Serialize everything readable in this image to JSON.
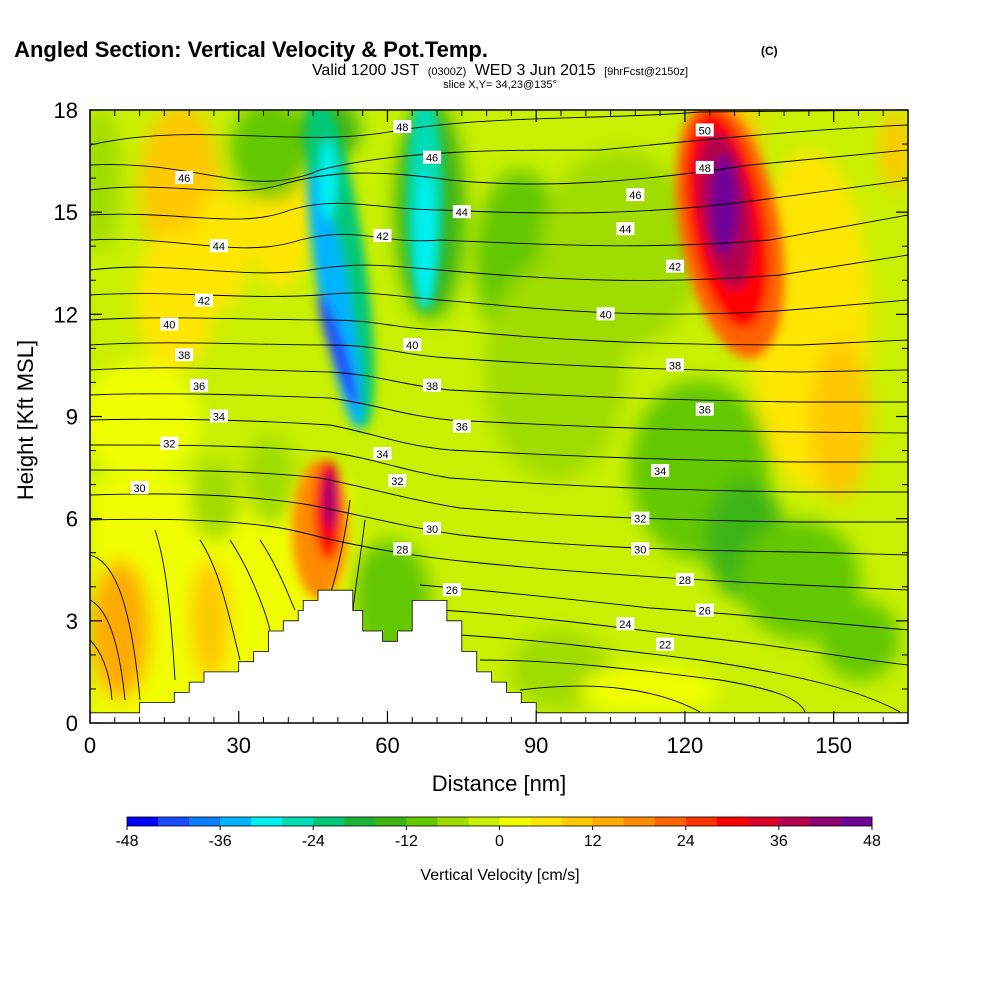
{
  "chart_data": {
    "type": "heatmap",
    "title": "Angled Section: Vertical Velocity & Pot.Temp.",
    "title_unit": "(C)",
    "subtitle_parts": {
      "valid": "Valid 1200 JST",
      "utc": "(0300Z)",
      "date": "WED 3 Jun 2015",
      "fcst": "[9hrFcst@2150z]"
    },
    "slice_label": "slice X,Y= 34,23@135°",
    "xlabel": "Distance [nm]",
    "ylabel": "Height [Kft MSL]",
    "xlim": [
      0,
      165
    ],
    "ylim": [
      0,
      18
    ],
    "xticks": [
      0,
      30,
      60,
      90,
      120,
      150
    ],
    "yticks": [
      0,
      3,
      6,
      9,
      12,
      15,
      18
    ],
    "grid": false,
    "colorbar": {
      "label": "Vertical Velocity [cm/s]",
      "ticks": [
        -48,
        -36,
        -24,
        -12,
        0,
        12,
        24,
        36,
        48
      ],
      "min": -48,
      "max": 48,
      "colors": [
        "#0000ff",
        "#1a4cff",
        "#0a7fff",
        "#00b4ff",
        "#00f0f0",
        "#00dcb4",
        "#00c878",
        "#1eb43c",
        "#3cb414",
        "#64c800",
        "#a0dc00",
        "#c8f000",
        "#f0ff00",
        "#ffe600",
        "#ffc800",
        "#ffaa00",
        "#ff8c00",
        "#ff6400",
        "#ff3200",
        "#ff0000",
        "#dc0028",
        "#b4004c",
        "#8c0073",
        "#6e0096"
      ]
    },
    "theta_contour_labels": [
      {
        "label": "50",
        "x": 124,
        "y": 17.4
      },
      {
        "label": "48",
        "x": 124,
        "y": 16.3
      },
      {
        "label": "46",
        "x": 110,
        "y": 15.5
      },
      {
        "label": "44",
        "x": 108,
        "y": 14.5
      },
      {
        "label": "42",
        "x": 118,
        "y": 13.4
      },
      {
        "label": "40",
        "x": 104,
        "y": 12.0
      },
      {
        "label": "38",
        "x": 118,
        "y": 10.5
      },
      {
        "label": "36",
        "x": 124,
        "y": 9.2
      },
      {
        "label": "34",
        "x": 115,
        "y": 7.4
      },
      {
        "label": "32",
        "x": 111,
        "y": 6.0
      },
      {
        "label": "30",
        "x": 111,
        "y": 5.1
      },
      {
        "label": "28",
        "x": 120,
        "y": 4.2
      },
      {
        "label": "26",
        "x": 124,
        "y": 3.3
      },
      {
        "label": "24",
        "x": 108,
        "y": 2.9
      },
      {
        "label": "22",
        "x": 116,
        "y": 2.3
      },
      {
        "label": "48",
        "x": 63,
        "y": 17.5
      },
      {
        "label": "46",
        "x": 69,
        "y": 16.6
      },
      {
        "label": "44",
        "x": 75,
        "y": 15.0
      },
      {
        "label": "42",
        "x": 59,
        "y": 14.3
      },
      {
        "label": "40",
        "x": 65,
        "y": 11.1
      },
      {
        "label": "38",
        "x": 69,
        "y": 9.9
      },
      {
        "label": "36",
        "x": 75,
        "y": 8.7
      },
      {
        "label": "34",
        "x": 59,
        "y": 7.9
      },
      {
        "label": "32",
        "x": 62,
        "y": 7.1
      },
      {
        "label": "30",
        "x": 69,
        "y": 5.7
      },
      {
        "label": "28",
        "x": 63,
        "y": 5.1
      },
      {
        "label": "26",
        "x": 73,
        "y": 3.9
      },
      {
        "label": "46",
        "x": 19,
        "y": 16.0
      },
      {
        "label": "44",
        "x": 26,
        "y": 14.0
      },
      {
        "label": "42",
        "x": 23,
        "y": 12.4
      },
      {
        "label": "40",
        "x": 16,
        "y": 11.7
      },
      {
        "label": "38",
        "x": 19,
        "y": 10.8
      },
      {
        "label": "36",
        "x": 22,
        "y": 9.9
      },
      {
        "label": "34",
        "x": 26,
        "y": 9.0
      },
      {
        "label": "32",
        "x": 16,
        "y": 8.2
      },
      {
        "label": "30",
        "x": 10,
        "y": 6.9
      }
    ],
    "terrain_profile": [
      [
        0,
        0.3
      ],
      [
        10,
        0.3
      ],
      [
        10,
        0.6
      ],
      [
        17,
        0.6
      ],
      [
        17,
        0.9
      ],
      [
        20,
        0.9
      ],
      [
        20,
        1.2
      ],
      [
        23,
        1.2
      ],
      [
        23,
        1.5
      ],
      [
        30,
        1.5
      ],
      [
        30,
        1.8
      ],
      [
        33,
        1.8
      ],
      [
        33,
        2.1
      ],
      [
        36,
        2.1
      ],
      [
        36,
        2.7
      ],
      [
        39,
        2.7
      ],
      [
        39,
        3.0
      ],
      [
        42,
        3.0
      ],
      [
        42,
        3.3
      ],
      [
        43,
        3.3
      ],
      [
        43,
        3.6
      ],
      [
        46,
        3.6
      ],
      [
        46,
        3.9
      ],
      [
        53,
        3.9
      ],
      [
        53,
        3.3
      ],
      [
        55,
        3.3
      ],
      [
        55,
        2.7
      ],
      [
        59,
        2.7
      ],
      [
        59,
        2.4
      ],
      [
        62,
        2.4
      ],
      [
        62,
        2.7
      ],
      [
        65,
        2.7
      ],
      [
        65,
        3.6
      ],
      [
        72,
        3.6
      ],
      [
        72,
        3.0
      ],
      [
        75,
        3.0
      ],
      [
        75,
        2.1
      ],
      [
        78,
        2.1
      ],
      [
        78,
        1.5
      ],
      [
        81,
        1.5
      ],
      [
        81,
        1.2
      ],
      [
        84,
        1.2
      ],
      [
        84,
        0.9
      ],
      [
        87,
        0.9
      ],
      [
        87,
        0.6
      ],
      [
        90,
        0.6
      ],
      [
        90,
        0.3
      ],
      [
        165,
        0.3
      ]
    ]
  }
}
